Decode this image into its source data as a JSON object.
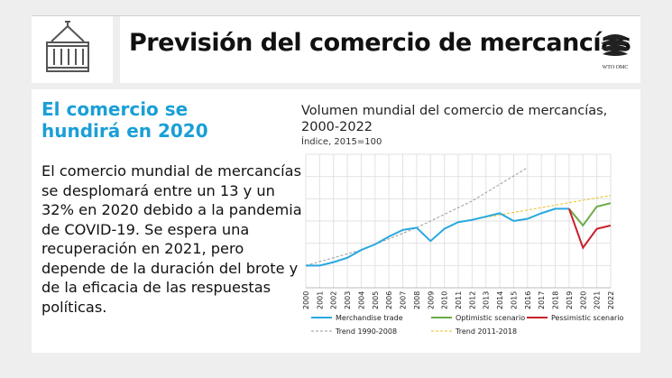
{
  "header": {
    "title": "Previsión del comercio de mercancías",
    "logo_text": "WTO OMC",
    "icons": [
      "shipping-container-icon",
      "wto-logo"
    ]
  },
  "content": {
    "subheading": "El comercio se hundirá en 2020",
    "body": "El comercio mundial de mercancías se desplomará entre un 13 y un 32% en 2020 debido a la pandemia de COVID-19. Se espera una recuperación en 2021, pero depende de la duración del brote y de la eficacia de las respuestas políticas."
  },
  "colors": {
    "accent": "#1a9fd6",
    "merchandise": "#29a8e0",
    "optimistic": "#6aab45",
    "pessimistic": "#c8202a",
    "trend1990": "#9a9a9a",
    "trend2011": "#e8c020"
  },
  "chart_data": {
    "type": "line",
    "title": "Volumen mundial del comercio de mercancías, 2000-2022",
    "subtitle": "Índice, 2015=100",
    "x": [
      "2000",
      "2001",
      "2002",
      "2003",
      "2004",
      "2005",
      "2006",
      "2007",
      "2008",
      "2009",
      "2010",
      "2011",
      "2012",
      "2013",
      "2014",
      "2015",
      "2016",
      "2017",
      "2018",
      "2019",
      "2020",
      "2021",
      "2022"
    ],
    "ylim": [
      40,
      160
    ],
    "grid": true,
    "legend_position": "bottom",
    "series": [
      {
        "name": "Merchandise trade",
        "color": "#29a8e0",
        "style": "solid",
        "x": [
          2000,
          2001,
          2002,
          2003,
          2004,
          2005,
          2006,
          2007,
          2008,
          2009,
          2010,
          2011,
          2012,
          2013,
          2014,
          2015,
          2016,
          2017,
          2018,
          2019
        ],
        "values": [
          60,
          60,
          63,
          67,
          74,
          79,
          86,
          92,
          94,
          82,
          93,
          99,
          101,
          104,
          107,
          100,
          102,
          107,
          111,
          111
        ]
      },
      {
        "name": "Optimistic scenario",
        "color": "#6aab45",
        "style": "solid",
        "x": [
          2019,
          2020,
          2021,
          2022
        ],
        "values": [
          111,
          96,
          113,
          116
        ]
      },
      {
        "name": "Pessimistic scenario",
        "color": "#c8202a",
        "style": "solid",
        "x": [
          2019,
          2020,
          2021,
          2022
        ],
        "values": [
          111,
          76,
          93,
          96
        ]
      },
      {
        "name": "Trend 1990-2008",
        "color": "#9a9a9a",
        "style": "dashed",
        "x": [
          2000,
          2004,
          2008,
          2012,
          2016
        ],
        "values": [
          60,
          74,
          94,
          118,
          148
        ]
      },
      {
        "name": "Trend 2011-2018",
        "color": "#e8c020",
        "style": "dashed",
        "x": [
          2011,
          2022
        ],
        "values": [
          99,
          123
        ]
      }
    ]
  }
}
